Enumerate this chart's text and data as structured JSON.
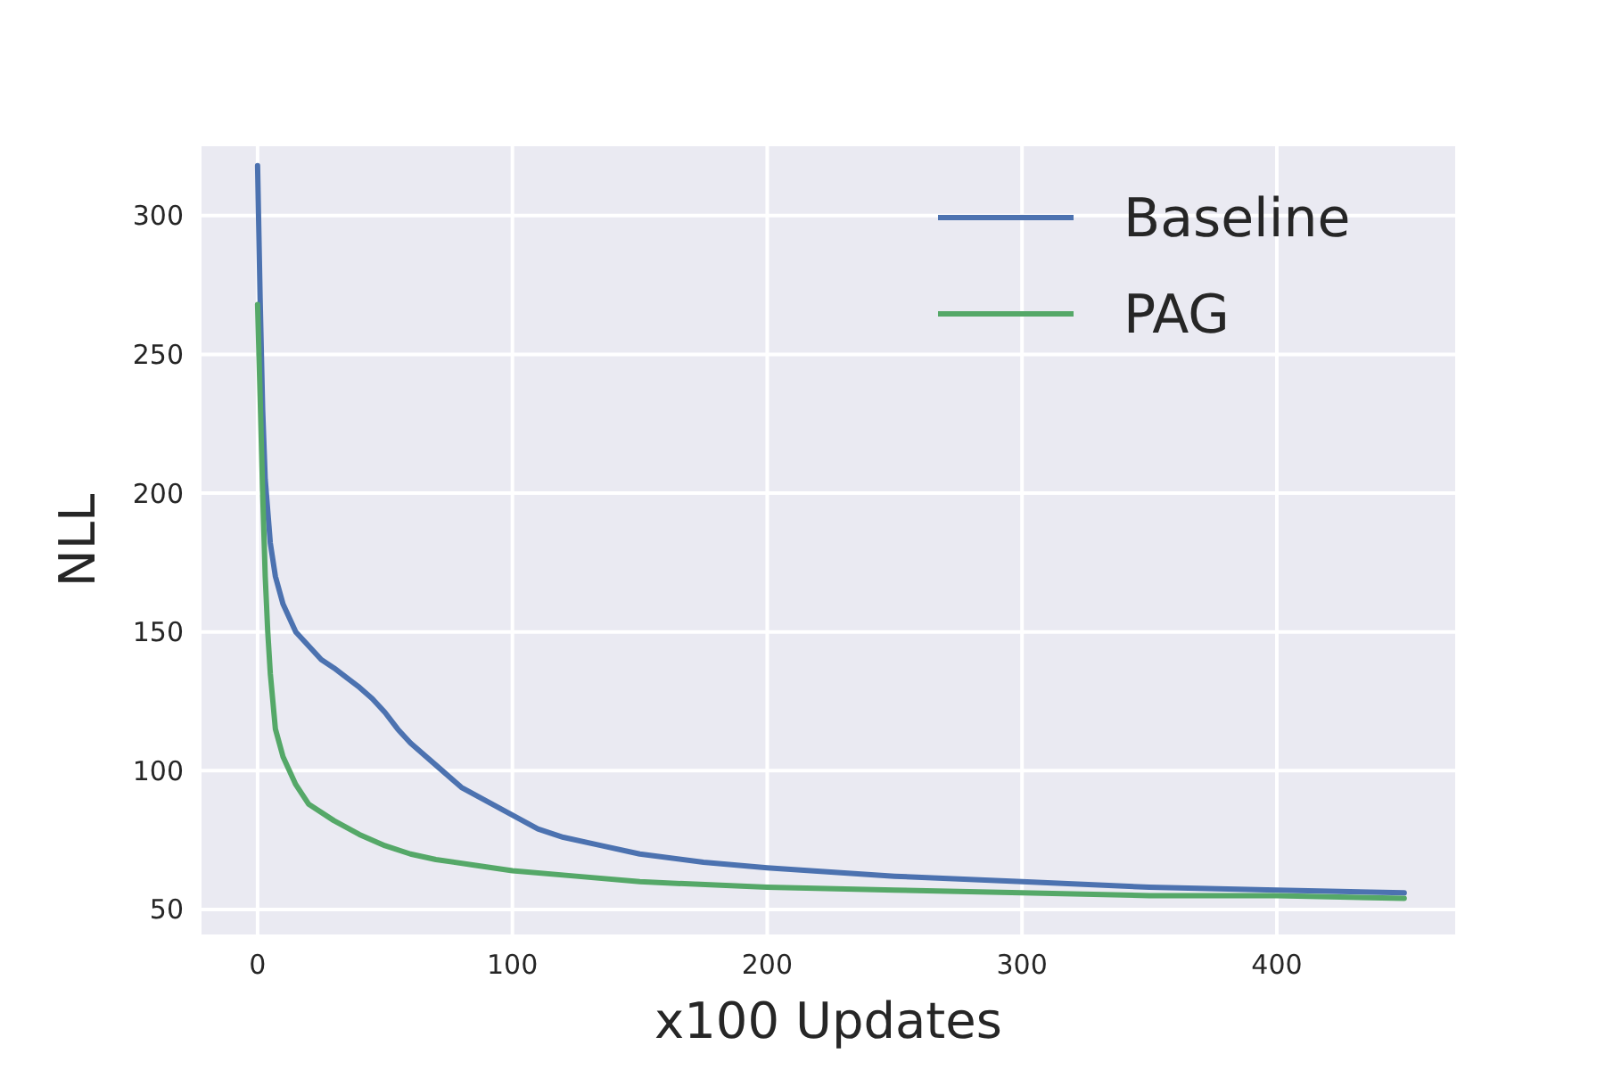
{
  "chart_data": {
    "type": "line",
    "xlabel": "x100 Updates",
    "ylabel": "NLL",
    "xlim": [
      -22,
      470
    ],
    "ylim": [
      41,
      325
    ],
    "xticks": [
      0,
      100,
      200,
      300,
      400
    ],
    "yticks": [
      50,
      100,
      150,
      200,
      250,
      300
    ],
    "grid": true,
    "legend": "top right",
    "line_style": "solid",
    "series": [
      {
        "name": "Baseline",
        "color": "#4c72b0",
        "x": [
          0,
          1,
          2,
          3,
          5,
          7,
          10,
          15,
          20,
          25,
          30,
          40,
          45,
          50,
          55,
          60,
          70,
          80,
          90,
          100,
          110,
          120,
          135,
          150,
          175,
          200,
          250,
          300,
          350,
          400,
          450
        ],
        "values": [
          318,
          270,
          230,
          205,
          182,
          170,
          160,
          150,
          145,
          140,
          137,
          130,
          126,
          121,
          115,
          110,
          102,
          94,
          89,
          84,
          79,
          76,
          73,
          70,
          67,
          65,
          62,
          60,
          58,
          57,
          56
        ]
      },
      {
        "name": "PAG",
        "color": "#55a868",
        "x": [
          0,
          1,
          2,
          3,
          4,
          5,
          7,
          10,
          15,
          20,
          30,
          40,
          50,
          60,
          70,
          85,
          100,
          125,
          150,
          200,
          250,
          300,
          350,
          400,
          450
        ],
        "values": [
          268,
          235,
          200,
          170,
          150,
          135,
          115,
          105,
          95,
          88,
          82,
          77,
          73,
          70,
          68,
          66,
          64,
          62,
          60,
          58,
          57,
          56,
          55,
          55,
          54
        ]
      }
    ]
  }
}
